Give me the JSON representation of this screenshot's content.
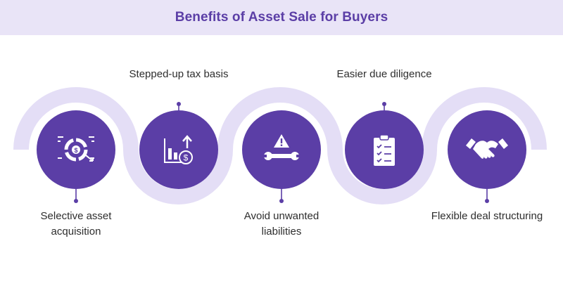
{
  "title": "Benefits of Asset Sale for Buyers",
  "colors": {
    "accent": "#5b3ea6",
    "track": "#e4def6",
    "header_bg": "#e9e4f7",
    "text": "#2e2e2e"
  },
  "steps": [
    {
      "label": "Selective asset acquisition",
      "icon": "dollar-target-icon"
    },
    {
      "label": "Stepped-up tax basis",
      "icon": "bar-chart-dollar-icon"
    },
    {
      "label": "Avoid unwanted liabilities",
      "icon": "warning-wrench-icon"
    },
    {
      "label": "Easier due diligence",
      "icon": "clipboard-checklist-icon"
    },
    {
      "label": "Flexible deal structuring",
      "icon": "handshake-icon"
    }
  ]
}
